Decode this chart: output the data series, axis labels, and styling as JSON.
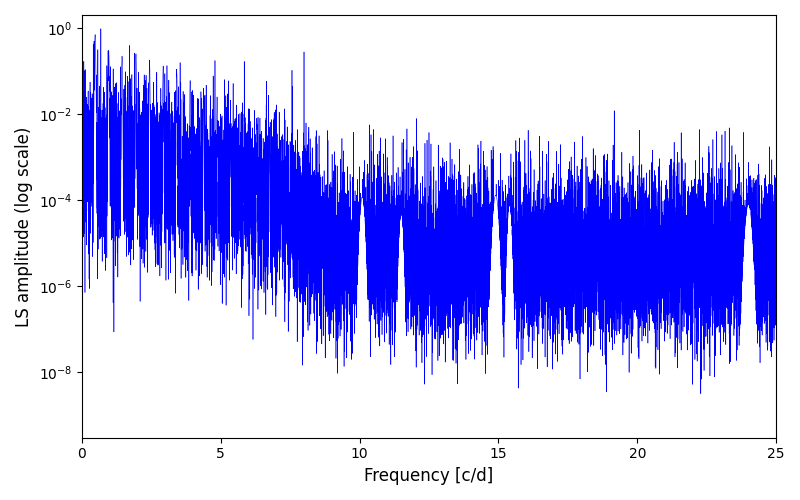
{
  "line_color": "#0000FF",
  "xlabel": "Frequency [c/d]",
  "ylabel": "LS amplitude (log scale)",
  "xlim": [
    0,
    25
  ],
  "ylim": [
    3e-10,
    2
  ],
  "n_points": 15000,
  "background_color": "#ffffff",
  "line_width": 0.4,
  "figsize": [
    8.0,
    5.0
  ],
  "dpi": 100,
  "seed": 7777
}
